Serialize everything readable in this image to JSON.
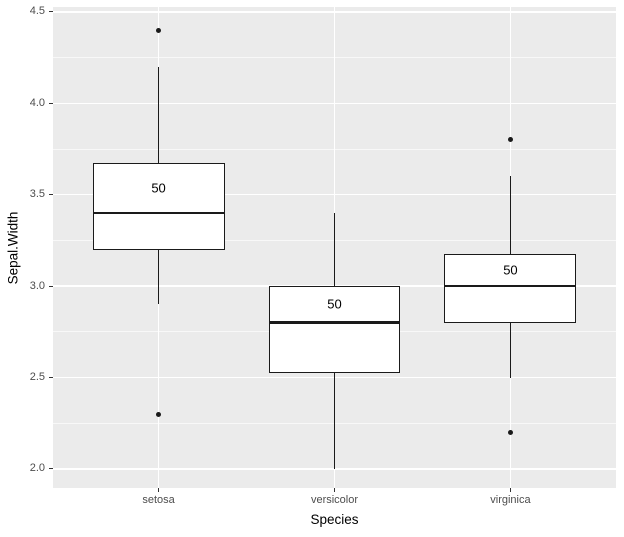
{
  "chart_data": {
    "type": "boxplot",
    "title": "",
    "xlabel": "Species",
    "ylabel": "Sepal.Width",
    "categories": [
      "setosa",
      "versicolor",
      "virginica"
    ],
    "series": [
      {
        "category": "setosa",
        "lower_whisker": 2.9,
        "q1": 3.2,
        "median": 3.4,
        "q3": 3.675,
        "upper_whisker": 4.2,
        "outliers": [
          4.4,
          2.3
        ],
        "count_label": "50"
      },
      {
        "category": "versicolor",
        "lower_whisker": 2.0,
        "q1": 2.525,
        "median": 2.8,
        "q3": 3.0,
        "upper_whisker": 3.4,
        "outliers": [],
        "count_label": "50"
      },
      {
        "category": "virginica",
        "lower_whisker": 2.5,
        "q1": 2.8,
        "median": 3.0,
        "q3": 3.175,
        "upper_whisker": 3.6,
        "outliers": [
          3.8,
          2.2
        ],
        "count_label": "50"
      }
    ],
    "y_ticks": [
      2.0,
      2.5,
      3.0,
      3.5,
      4.0,
      4.5
    ],
    "y_tick_labels": [
      "2.0",
      "2.5",
      "3.0",
      "3.5",
      "4.0",
      "4.5"
    ],
    "y_minor_ticks": [
      2.25,
      2.75,
      3.25,
      3.75,
      4.25
    ],
    "ylim": [
      1.896,
      4.527
    ],
    "grid": true,
    "legend": "none",
    "colors": {
      "panel_bg": "#ebebeb",
      "grid_major": "#ffffff",
      "box_fill": "#ffffff",
      "box_stroke": "#1a1a1a",
      "outlier": "#1a1a1a",
      "axis_text": "#4d4d4d",
      "axis_title": "#000000"
    }
  }
}
